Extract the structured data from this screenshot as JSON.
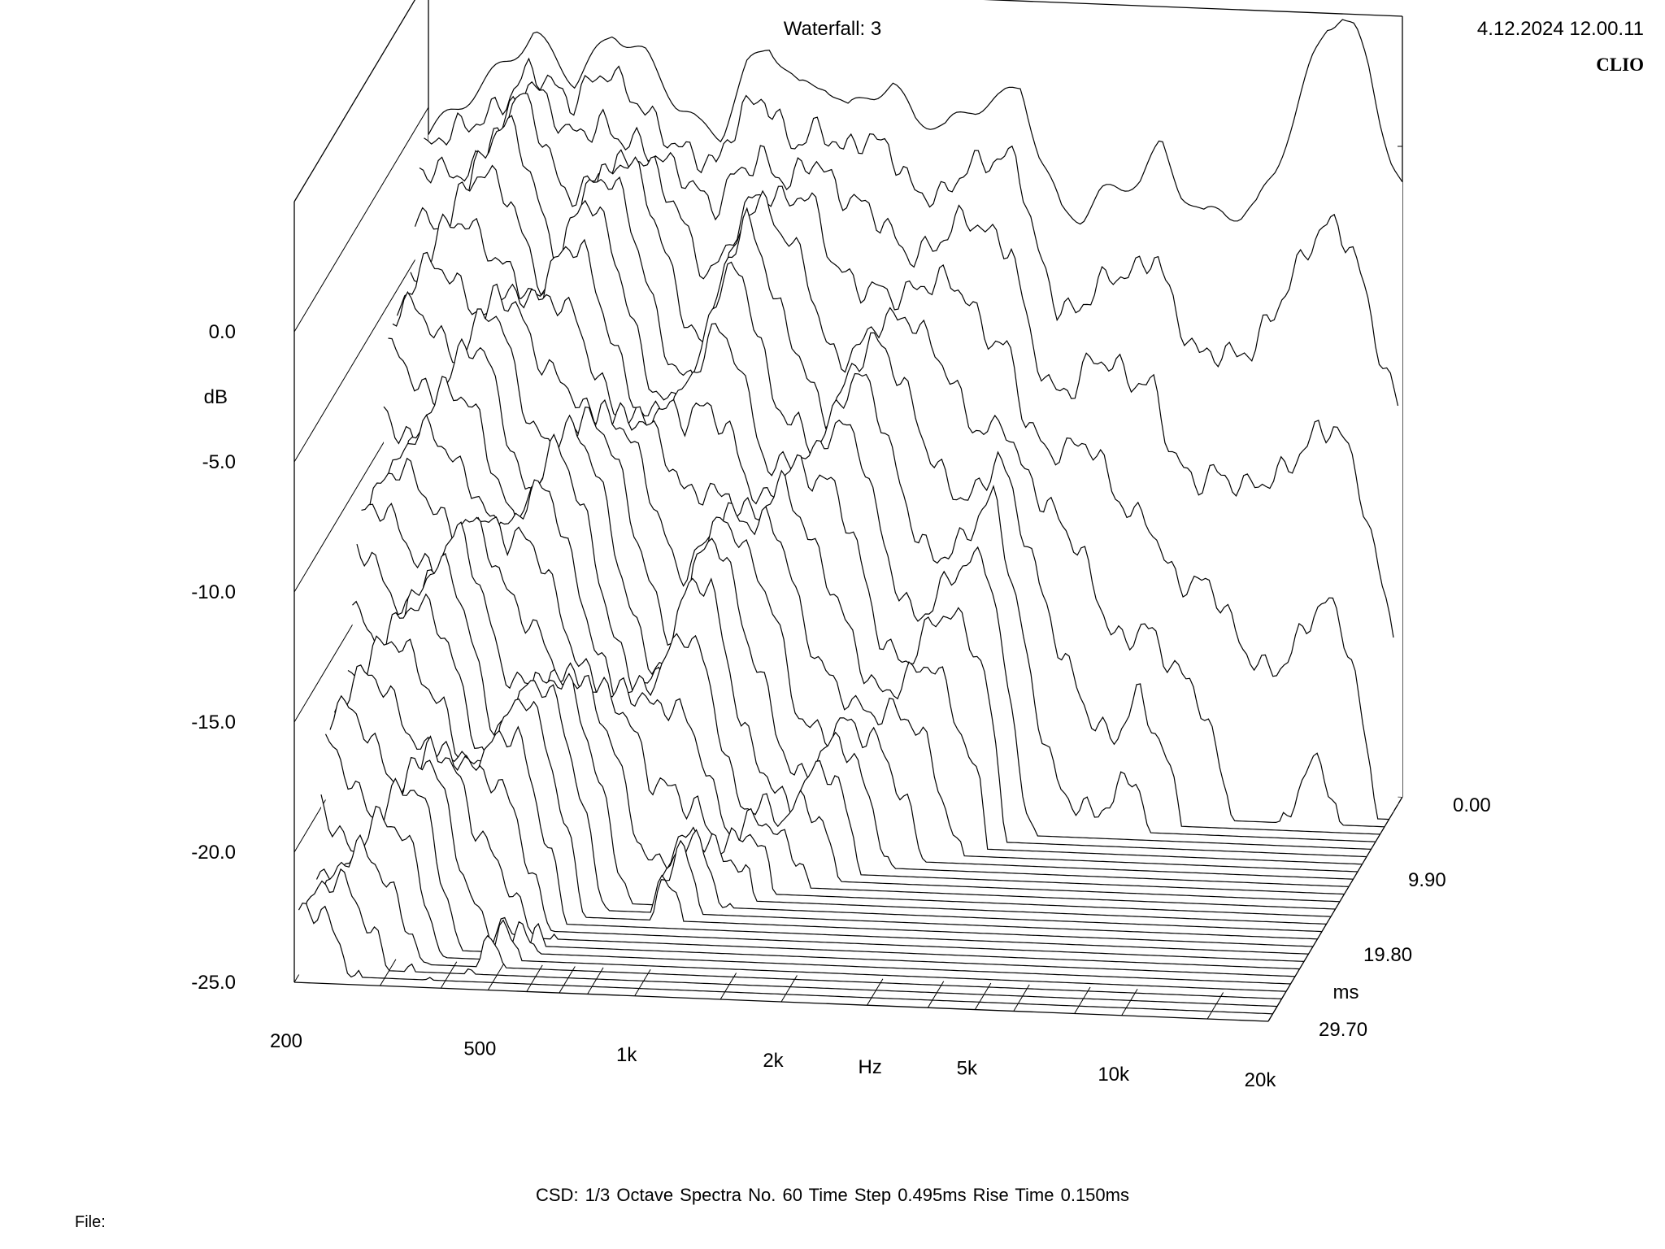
{
  "header": {
    "title": "Waterfall: 3",
    "timestamp": "4.12.2024 12.00.11",
    "brand": "CLIO"
  },
  "footer": {
    "settings": "CSD:   1/3 Octave   Spectra No. 60   Time Step 0.495ms   Rise Time 0.150ms",
    "file_label": "File:"
  },
  "colors": {
    "background": "#ffffff",
    "lines": "#000000"
  },
  "chart_data": {
    "type": "waterfall",
    "title": "Waterfall: 3",
    "x_axis": {
      "label": "Hz",
      "scale": "log",
      "range": [
        200,
        20000
      ],
      "ticks": [
        {
          "value": 200,
          "label": "200"
        },
        {
          "value": 500,
          "label": "500"
        },
        {
          "value": 1000,
          "label": "1k"
        },
        {
          "value": 2000,
          "label": "2k"
        },
        {
          "value": 5000,
          "label": "5k"
        },
        {
          "value": 10000,
          "label": "10k"
        },
        {
          "value": 20000,
          "label": "20k"
        }
      ]
    },
    "y_axis": {
      "label": "dB",
      "range": [
        -25,
        5
      ],
      "ticks": [
        {
          "value": 0,
          "label": "0.0"
        },
        {
          "value": -5,
          "label": "-5.0"
        },
        {
          "value": -10,
          "label": "-10.0"
        },
        {
          "value": -15,
          "label": "-15.0"
        },
        {
          "value": -20,
          "label": "-20.0"
        },
        {
          "value": -25,
          "label": "-25.0"
        }
      ]
    },
    "z_axis": {
      "label": "ms",
      "range": [
        0,
        29.7
      ],
      "ticks": [
        {
          "value": 0,
          "label": "0.00"
        },
        {
          "value": 9.9,
          "label": "9.90"
        },
        {
          "value": 19.8,
          "label": "19.80"
        },
        {
          "value": 29.7,
          "label": "29.70"
        }
      ]
    },
    "spectra_count": 60,
    "time_step_ms": 0.495,
    "rise_time_ms": 0.15,
    "smoothing": "1/3 Octave",
    "response_shape_t0": {
      "freq_hz": [
        200,
        260,
        330,
        400,
        480,
        560,
        650,
        720,
        800,
        900,
        1000,
        1150,
        1300,
        1450,
        1600,
        1800,
        2000,
        2300,
        2600,
        3000,
        3300,
        3600,
        4000,
        4400,
        4800,
        5300,
        5800,
        6400,
        7000,
        7800,
        8500,
        9300,
        10000,
        11000,
        12000,
        13000,
        14000,
        15000,
        16000,
        17000,
        18000,
        19000,
        20000
      ],
      "db": [
        -1.0,
        1.0,
        3.0,
        1.2,
        3.2,
        2.3,
        0.5,
        -0.3,
        -0.6,
        2.0,
        3.0,
        1.3,
        1.6,
        0.5,
        1.2,
        1.5,
        0.4,
        0.0,
        0.8,
        1.2,
        1.8,
        -1.0,
        -3.0,
        -3.2,
        -2.3,
        -2.0,
        -1.6,
        -0.3,
        -2.0,
        -3.0,
        -2.7,
        -2.9,
        -2.6,
        -1.0,
        1.0,
        3.0,
        4.5,
        5.0,
        4.4,
        3.0,
        1.0,
        -0.5,
        -1.5
      ]
    },
    "grid": true,
    "legend": "none"
  }
}
